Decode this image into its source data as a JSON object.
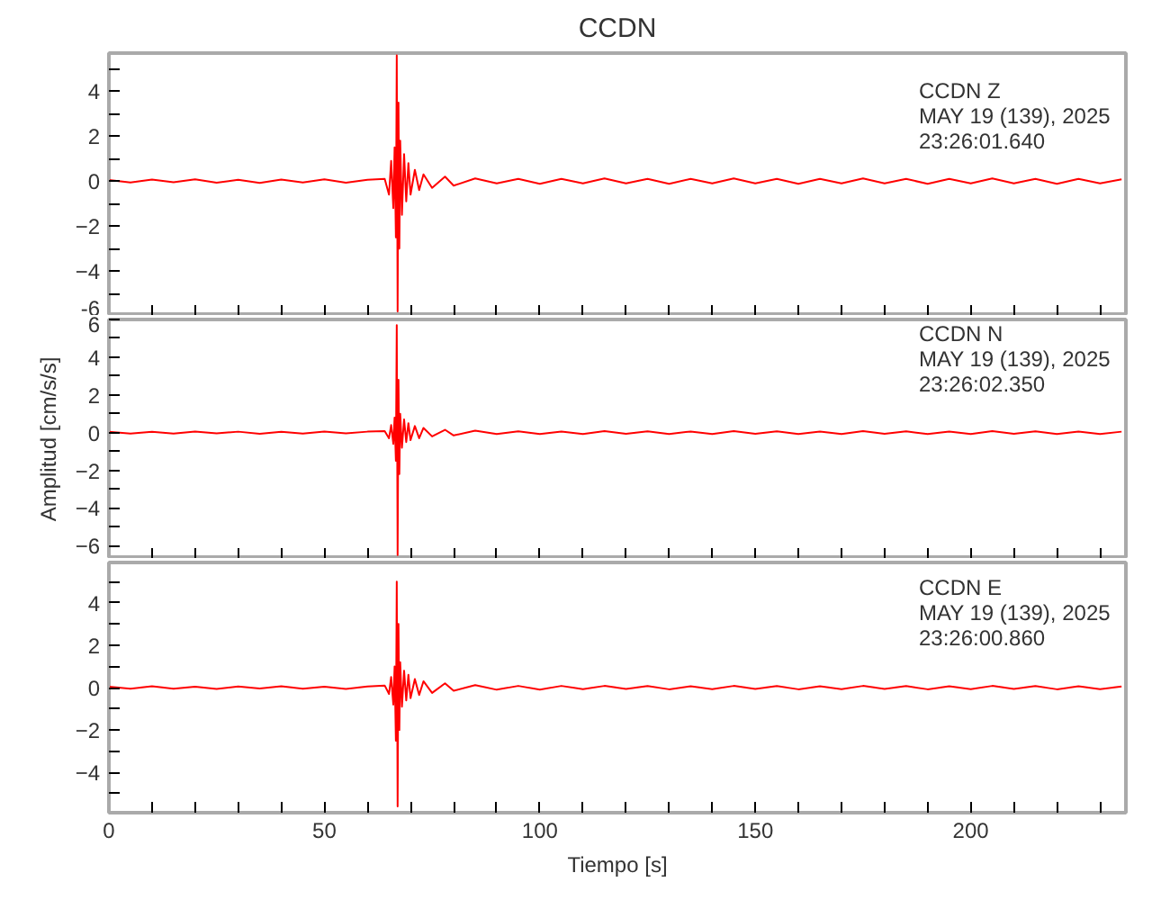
{
  "chart_data": [
    {
      "type": "line",
      "title": "CCDN",
      "annotations": [
        "CCDN   Z",
        "MAY 19 (139), 2025",
        "23:26:01.640"
      ],
      "tick_labels": "y",
      "grid": false,
      "xlim": [
        0,
        236
      ],
      "ylim": [
        -6,
        5.7
      ],
      "xticks": [
        0,
        {
          "value": 10,
          "label": null
        },
        {
          "value": 20,
          "label": null
        },
        {
          "value": 30,
          "label": null
        },
        {
          "value": 40,
          "label": null
        },
        50,
        {
          "value": 60,
          "label": null
        },
        {
          "value": 70,
          "label": null
        },
        {
          "value": 80,
          "label": null
        },
        {
          "value": 90,
          "label": null
        },
        100,
        {
          "value": 110,
          "label": null
        },
        {
          "value": 120,
          "label": null
        },
        {
          "value": 130,
          "label": null
        },
        {
          "value": 140,
          "label": null
        },
        150,
        {
          "value": 160,
          "label": null
        },
        {
          "value": 170,
          "label": null
        },
        {
          "value": 180,
          "label": null
        },
        {
          "value": 190,
          "label": null
        },
        200,
        {
          "value": 210,
          "label": null
        },
        {
          "value": 220,
          "label": null
        },
        {
          "value": 230,
          "label": null
        }
      ],
      "yticks": [
        {
          "value": -6,
          "label": "-6"
        },
        {
          "value": -5,
          "label": null
        },
        {
          "value": -4,
          "label": "−4"
        },
        {
          "value": -3,
          "label": null
        },
        {
          "value": -2,
          "label": "−2"
        },
        {
          "value": -1,
          "label": null
        },
        0,
        {
          "value": 1,
          "label": null
        },
        2,
        {
          "value": 3,
          "label": null
        },
        4,
        {
          "value": 5,
          "label": null
        }
      ],
      "x": [
        0,
        5,
        10,
        15,
        20,
        25,
        30,
        35,
        40,
        45,
        50,
        55,
        60,
        64,
        65,
        65.5,
        66,
        66.3,
        66.6,
        66.8,
        67,
        67.2,
        67.4,
        67.6,
        68,
        68.5,
        69,
        69.5,
        70,
        71,
        72,
        73,
        75,
        78,
        80,
        85,
        90,
        95,
        100,
        105,
        110,
        115,
        120,
        125,
        130,
        135,
        140,
        145,
        150,
        155,
        160,
        165,
        170,
        175,
        180,
        185,
        190,
        195,
        200,
        205,
        210,
        215,
        220,
        225,
        230,
        235
      ],
      "series": [
        {
          "color": "#ff0000",
          "values": [
            0.05,
            -0.06,
            0.07,
            -0.05,
            0.08,
            -0.07,
            0.06,
            -0.08,
            0.07,
            -0.06,
            0.08,
            -0.07,
            0.06,
            0.1,
            -0.6,
            0.9,
            -1.2,
            1.5,
            -2.5,
            5.6,
            -5.8,
            3.5,
            -3.0,
            1.8,
            -1.5,
            1.2,
            -0.9,
            0.8,
            -0.6,
            0.5,
            -0.4,
            0.3,
            -0.3,
            0.2,
            -0.2,
            0.12,
            -0.1,
            0.1,
            -0.12,
            0.1,
            -0.1,
            0.12,
            -0.1,
            0.1,
            -0.12,
            0.1,
            -0.1,
            0.12,
            -0.1,
            0.1,
            -0.12,
            0.1,
            -0.1,
            0.12,
            -0.1,
            0.1,
            -0.12,
            0.1,
            -0.1,
            0.12,
            -0.1,
            0.1,
            -0.12,
            0.1,
            -0.1,
            0.08
          ]
        }
      ]
    },
    {
      "type": "line",
      "ylabel": "Amplitud [cm/s/s]",
      "annotations": [
        "CCDN   N",
        "MAY 19 (139), 2025",
        "23:26:02.350"
      ],
      "tick_labels": "y",
      "grid": false,
      "xlim": [
        0,
        236
      ],
      "ylim": [
        -6.7,
        6
      ],
      "xticks": [
        0,
        {
          "value": 10,
          "label": null
        },
        {
          "value": 20,
          "label": null
        },
        {
          "value": 30,
          "label": null
        },
        {
          "value": 40,
          "label": null
        },
        50,
        {
          "value": 60,
          "label": null
        },
        {
          "value": 70,
          "label": null
        },
        {
          "value": 80,
          "label": null
        },
        {
          "value": 90,
          "label": null
        },
        100,
        {
          "value": 110,
          "label": null
        },
        {
          "value": 120,
          "label": null
        },
        {
          "value": 130,
          "label": null
        },
        {
          "value": 140,
          "label": null
        },
        150,
        {
          "value": 160,
          "label": null
        },
        {
          "value": 170,
          "label": null
        },
        {
          "value": 180,
          "label": null
        },
        {
          "value": 190,
          "label": null
        },
        200,
        {
          "value": 210,
          "label": null
        },
        {
          "value": 220,
          "label": null
        },
        {
          "value": 230,
          "label": null
        }
      ],
      "yticks": [
        {
          "value": -6,
          "label": "−6"
        },
        {
          "value": -5,
          "label": null
        },
        {
          "value": -4,
          "label": "−4"
        },
        {
          "value": -3,
          "label": null
        },
        {
          "value": -2,
          "label": "−2"
        },
        {
          "value": -1,
          "label": null
        },
        0,
        {
          "value": 1,
          "label": null
        },
        2,
        {
          "value": 3,
          "label": null
        },
        4,
        {
          "value": 5,
          "label": null
        },
        6
      ],
      "x": [
        0,
        5,
        10,
        15,
        20,
        25,
        30,
        35,
        40,
        45,
        50,
        55,
        60,
        64,
        65,
        65.5,
        66,
        66.3,
        66.6,
        66.8,
        67,
        67.2,
        67.4,
        67.6,
        68,
        68.5,
        69,
        69.5,
        70,
        71,
        72,
        73,
        75,
        78,
        80,
        85,
        90,
        95,
        100,
        105,
        110,
        115,
        120,
        125,
        130,
        135,
        140,
        145,
        150,
        155,
        160,
        165,
        170,
        175,
        180,
        185,
        190,
        195,
        200,
        205,
        210,
        215,
        220,
        225,
        230,
        235
      ],
      "series": [
        {
          "color": "#ff0000",
          "values": [
            0.04,
            -0.05,
            0.04,
            -0.05,
            0.06,
            -0.04,
            0.05,
            -0.06,
            0.04,
            -0.05,
            0.06,
            -0.04,
            0.05,
            0.08,
            -0.3,
            0.4,
            -0.6,
            0.8,
            -1.5,
            5.7,
            -6.5,
            2.8,
            -2.2,
            1.0,
            -0.8,
            0.7,
            -0.5,
            0.5,
            -0.4,
            0.35,
            -0.3,
            0.25,
            -0.2,
            0.15,
            -0.15,
            0.1,
            -0.08,
            0.07,
            -0.08,
            0.06,
            -0.07,
            0.08,
            -0.06,
            0.07,
            -0.08,
            0.06,
            -0.07,
            0.08,
            -0.06,
            0.07,
            -0.08,
            0.06,
            -0.07,
            0.08,
            -0.06,
            0.07,
            -0.08,
            0.06,
            -0.07,
            0.08,
            -0.06,
            0.07,
            -0.08,
            0.06,
            -0.07,
            0.05
          ]
        }
      ]
    },
    {
      "type": "line",
      "xlabel": "Tiempo [s]",
      "annotations": [
        "CCDN   E",
        "MAY 19 (139), 2025",
        "23:26:00.860"
      ],
      "grid": false,
      "xlim": [
        0,
        236
      ],
      "ylim": [
        -5.9,
        5.9
      ],
      "xticks": [
        0,
        {
          "value": 10,
          "label": null
        },
        {
          "value": 20,
          "label": null
        },
        {
          "value": 30,
          "label": null
        },
        {
          "value": 40,
          "label": null
        },
        50,
        {
          "value": 60,
          "label": null
        },
        {
          "value": 70,
          "label": null
        },
        {
          "value": 80,
          "label": null
        },
        {
          "value": 90,
          "label": null
        },
        100,
        {
          "value": 110,
          "label": null
        },
        {
          "value": 120,
          "label": null
        },
        {
          "value": 130,
          "label": null
        },
        {
          "value": 140,
          "label": null
        },
        150,
        {
          "value": 160,
          "label": null
        },
        {
          "value": 170,
          "label": null
        },
        {
          "value": 180,
          "label": null
        },
        {
          "value": 190,
          "label": null
        },
        200,
        {
          "value": 210,
          "label": null
        },
        {
          "value": 220,
          "label": null
        },
        {
          "value": 230,
          "label": null
        }
      ],
      "yticks": [
        {
          "value": -5,
          "label": null
        },
        {
          "value": -4,
          "label": "−4"
        },
        {
          "value": -3,
          "label": null
        },
        {
          "value": -2,
          "label": "−2"
        },
        {
          "value": -1,
          "label": null
        },
        0,
        {
          "value": 1,
          "label": null
        },
        2,
        {
          "value": 3,
          "label": null
        },
        4,
        {
          "value": 5,
          "label": null
        }
      ],
      "x": [
        0,
        5,
        10,
        15,
        20,
        25,
        30,
        35,
        40,
        45,
        50,
        55,
        60,
        64,
        65,
        65.5,
        66,
        66.3,
        66.6,
        66.8,
        67,
        67.2,
        67.4,
        67.6,
        68,
        68.5,
        69,
        69.5,
        70,
        71,
        72,
        73,
        75,
        78,
        80,
        85,
        90,
        95,
        100,
        105,
        110,
        115,
        120,
        125,
        130,
        135,
        140,
        145,
        150,
        155,
        160,
        165,
        170,
        175,
        180,
        185,
        190,
        195,
        200,
        205,
        210,
        215,
        220,
        225,
        230,
        235
      ],
      "series": [
        {
          "color": "#ff0000",
          "values": [
            0.04,
            -0.05,
            0.06,
            -0.05,
            0.04,
            -0.06,
            0.05,
            -0.04,
            0.06,
            -0.05,
            0.04,
            -0.06,
            0.05,
            0.1,
            -0.3,
            0.5,
            -0.8,
            1.0,
            -2.5,
            5.0,
            -5.6,
            3.0,
            -2.0,
            1.2,
            -0.9,
            0.8,
            -0.6,
            0.6,
            -0.5,
            0.4,
            -0.35,
            0.3,
            -0.25,
            0.2,
            -0.15,
            0.12,
            -0.1,
            0.08,
            -0.1,
            0.08,
            -0.07,
            0.08,
            -0.06,
            0.07,
            -0.08,
            0.06,
            -0.07,
            0.08,
            -0.06,
            0.07,
            -0.08,
            0.06,
            -0.07,
            0.08,
            -0.06,
            0.07,
            -0.08,
            0.06,
            -0.07,
            0.08,
            -0.06,
            0.07,
            -0.08,
            0.06,
            -0.07,
            0.05
          ]
        }
      ]
    }
  ]
}
